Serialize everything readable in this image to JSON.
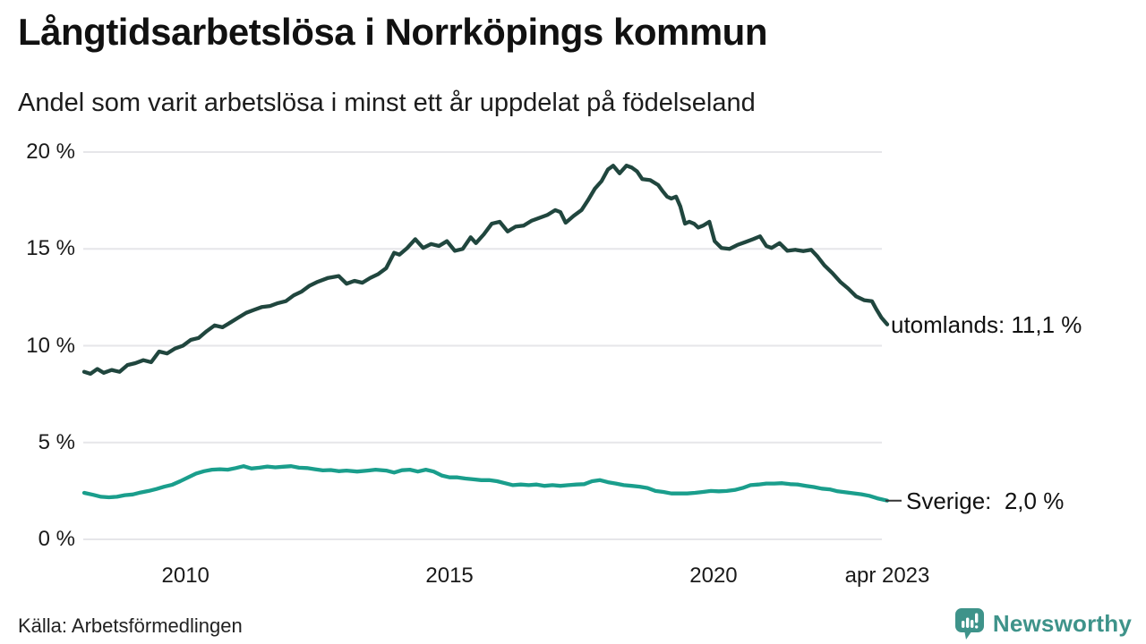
{
  "header": {
    "title": "Långtidsarbetslösa i Norrköpings kommun",
    "subtitle": "Andel som varit arbetslösa i minst ett år uppdelat på födelseland"
  },
  "footer": {
    "source": "Källa: Arbetsförmedlingen",
    "brand": "Newsworthy"
  },
  "colors": {
    "series_utomlands": "#20463e",
    "series_sverige": "#1a9e8c",
    "grid": "#e6e6e9",
    "connector": "#333333",
    "brand_teal": "#3e938a"
  },
  "chart_data": {
    "type": "line",
    "title": "Långtidsarbetslösa i Norrköpings kommun",
    "subtitle": "Andel som varit arbetslösa i minst ett år uppdelat på födelseland",
    "source": "Källa: Arbetsförmedlingen",
    "grid": true,
    "legend_position": "labels-at-line-ends",
    "x_range": [
      2008.08,
      2023.29
    ],
    "y_range": [
      0,
      20
    ],
    "x_ticks": [
      {
        "value": 2010,
        "label": "2010"
      },
      {
        "value": 2015,
        "label": "2015"
      },
      {
        "value": 2020,
        "label": "2020"
      },
      {
        "value": 2023.29,
        "label": "apr 2023"
      }
    ],
    "y_ticks": [
      {
        "value": 0,
        "label": "0 %"
      },
      {
        "value": 5,
        "label": "5 %"
      },
      {
        "value": 10,
        "label": "10 %"
      },
      {
        "value": 15,
        "label": "15 %"
      },
      {
        "value": 20,
        "label": "20 %"
      }
    ],
    "series": [
      {
        "name": "utomlands",
        "end_label": "utomlands: 11,1 %",
        "color": "#20463e",
        "connector": false,
        "points": [
          [
            2008.08,
            8.65
          ],
          [
            2008.2,
            8.55
          ],
          [
            2008.33,
            8.8
          ],
          [
            2008.45,
            8.6
          ],
          [
            2008.6,
            8.75
          ],
          [
            2008.75,
            8.65
          ],
          [
            2008.9,
            9.0
          ],
          [
            2009.05,
            9.1
          ],
          [
            2009.2,
            9.25
          ],
          [
            2009.35,
            9.15
          ],
          [
            2009.5,
            9.7
          ],
          [
            2009.65,
            9.6
          ],
          [
            2009.8,
            9.85
          ],
          [
            2009.95,
            10.0
          ],
          [
            2010.1,
            10.3
          ],
          [
            2010.25,
            10.4
          ],
          [
            2010.4,
            10.75
          ],
          [
            2010.55,
            11.05
          ],
          [
            2010.7,
            10.95
          ],
          [
            2010.85,
            11.2
          ],
          [
            2011.0,
            11.45
          ],
          [
            2011.15,
            11.7
          ],
          [
            2011.3,
            11.85
          ],
          [
            2011.45,
            12.0
          ],
          [
            2011.6,
            12.05
          ],
          [
            2011.75,
            12.2
          ],
          [
            2011.9,
            12.3
          ],
          [
            2012.05,
            12.6
          ],
          [
            2012.2,
            12.8
          ],
          [
            2012.35,
            13.1
          ],
          [
            2012.5,
            13.3
          ],
          [
            2012.7,
            13.5
          ],
          [
            2012.9,
            13.6
          ],
          [
            2013.05,
            13.2
          ],
          [
            2013.2,
            13.35
          ],
          [
            2013.35,
            13.25
          ],
          [
            2013.5,
            13.5
          ],
          [
            2013.65,
            13.7
          ],
          [
            2013.8,
            14.0
          ],
          [
            2013.95,
            14.8
          ],
          [
            2014.05,
            14.7
          ],
          [
            2014.2,
            15.05
          ],
          [
            2014.35,
            15.5
          ],
          [
            2014.5,
            15.05
          ],
          [
            2014.65,
            15.25
          ],
          [
            2014.8,
            15.15
          ],
          [
            2014.95,
            15.4
          ],
          [
            2015.1,
            14.9
          ],
          [
            2015.25,
            15.0
          ],
          [
            2015.4,
            15.6
          ],
          [
            2015.5,
            15.3
          ],
          [
            2015.65,
            15.75
          ],
          [
            2015.8,
            16.3
          ],
          [
            2015.95,
            16.4
          ],
          [
            2016.1,
            15.9
          ],
          [
            2016.25,
            16.15
          ],
          [
            2016.4,
            16.2
          ],
          [
            2016.55,
            16.45
          ],
          [
            2016.7,
            16.6
          ],
          [
            2016.85,
            16.75
          ],
          [
            2017.0,
            17.0
          ],
          [
            2017.1,
            16.9
          ],
          [
            2017.2,
            16.35
          ],
          [
            2017.35,
            16.7
          ],
          [
            2017.5,
            17.0
          ],
          [
            2017.62,
            17.5
          ],
          [
            2017.75,
            18.1
          ],
          [
            2017.88,
            18.5
          ],
          [
            2018.0,
            19.1
          ],
          [
            2018.1,
            19.3
          ],
          [
            2018.22,
            18.9
          ],
          [
            2018.35,
            19.3
          ],
          [
            2018.45,
            19.2
          ],
          [
            2018.55,
            19.0
          ],
          [
            2018.65,
            18.6
          ],
          [
            2018.8,
            18.55
          ],
          [
            2018.95,
            18.3
          ],
          [
            2019.03,
            18.0
          ],
          [
            2019.12,
            17.7
          ],
          [
            2019.2,
            17.6
          ],
          [
            2019.29,
            17.7
          ],
          [
            2019.37,
            17.2
          ],
          [
            2019.46,
            16.3
          ],
          [
            2019.54,
            16.4
          ],
          [
            2019.63,
            16.3
          ],
          [
            2019.71,
            16.1
          ],
          [
            2019.8,
            16.2
          ],
          [
            2019.92,
            16.4
          ],
          [
            2020.02,
            15.4
          ],
          [
            2020.15,
            15.05
          ],
          [
            2020.3,
            15.0
          ],
          [
            2020.45,
            15.2
          ],
          [
            2020.6,
            15.35
          ],
          [
            2020.75,
            15.5
          ],
          [
            2020.88,
            15.65
          ],
          [
            2021.0,
            15.15
          ],
          [
            2021.1,
            15.05
          ],
          [
            2021.25,
            15.3
          ],
          [
            2021.4,
            14.9
          ],
          [
            2021.55,
            14.95
          ],
          [
            2021.7,
            14.88
          ],
          [
            2021.85,
            14.95
          ],
          [
            2021.97,
            14.6
          ],
          [
            2022.1,
            14.15
          ],
          [
            2022.25,
            13.75
          ],
          [
            2022.4,
            13.3
          ],
          [
            2022.55,
            12.95
          ],
          [
            2022.7,
            12.55
          ],
          [
            2022.85,
            12.35
          ],
          [
            2023.0,
            12.3
          ],
          [
            2023.08,
            11.9
          ],
          [
            2023.18,
            11.45
          ],
          [
            2023.29,
            11.1
          ]
        ]
      },
      {
        "name": "Sverige",
        "end_label": "Sverige:  2,0 %",
        "color": "#1a9e8c",
        "connector": true,
        "points": [
          [
            2008.08,
            2.4
          ],
          [
            2008.25,
            2.3
          ],
          [
            2008.4,
            2.2
          ],
          [
            2008.55,
            2.17
          ],
          [
            2008.7,
            2.2
          ],
          [
            2008.85,
            2.28
          ],
          [
            2009.0,
            2.32
          ],
          [
            2009.15,
            2.42
          ],
          [
            2009.3,
            2.5
          ],
          [
            2009.45,
            2.6
          ],
          [
            2009.6,
            2.72
          ],
          [
            2009.75,
            2.82
          ],
          [
            2009.9,
            3.0
          ],
          [
            2010.05,
            3.2
          ],
          [
            2010.2,
            3.4
          ],
          [
            2010.35,
            3.52
          ],
          [
            2010.5,
            3.6
          ],
          [
            2010.65,
            3.62
          ],
          [
            2010.8,
            3.6
          ],
          [
            2010.95,
            3.68
          ],
          [
            2011.1,
            3.78
          ],
          [
            2011.25,
            3.66
          ],
          [
            2011.4,
            3.7
          ],
          [
            2011.55,
            3.76
          ],
          [
            2011.7,
            3.72
          ],
          [
            2011.85,
            3.75
          ],
          [
            2012.0,
            3.78
          ],
          [
            2012.15,
            3.7
          ],
          [
            2012.3,
            3.68
          ],
          [
            2012.45,
            3.62
          ],
          [
            2012.6,
            3.56
          ],
          [
            2012.75,
            3.58
          ],
          [
            2012.9,
            3.52
          ],
          [
            2013.05,
            3.55
          ],
          [
            2013.25,
            3.5
          ],
          [
            2013.45,
            3.55
          ],
          [
            2013.6,
            3.6
          ],
          [
            2013.8,
            3.55
          ],
          [
            2013.95,
            3.45
          ],
          [
            2014.1,
            3.57
          ],
          [
            2014.25,
            3.6
          ],
          [
            2014.4,
            3.5
          ],
          [
            2014.55,
            3.6
          ],
          [
            2014.7,
            3.5
          ],
          [
            2014.85,
            3.3
          ],
          [
            2015.0,
            3.2
          ],
          [
            2015.15,
            3.2
          ],
          [
            2015.3,
            3.14
          ],
          [
            2015.45,
            3.1
          ],
          [
            2015.6,
            3.06
          ],
          [
            2015.75,
            3.06
          ],
          [
            2015.9,
            3.0
          ],
          [
            2016.05,
            2.9
          ],
          [
            2016.2,
            2.8
          ],
          [
            2016.35,
            2.83
          ],
          [
            2016.5,
            2.8
          ],
          [
            2016.65,
            2.83
          ],
          [
            2016.8,
            2.76
          ],
          [
            2016.95,
            2.8
          ],
          [
            2017.1,
            2.76
          ],
          [
            2017.25,
            2.8
          ],
          [
            2017.4,
            2.83
          ],
          [
            2017.55,
            2.85
          ],
          [
            2017.7,
            3.0
          ],
          [
            2017.85,
            3.06
          ],
          [
            2018.0,
            2.95
          ],
          [
            2018.15,
            2.88
          ],
          [
            2018.3,
            2.8
          ],
          [
            2018.45,
            2.76
          ],
          [
            2018.6,
            2.72
          ],
          [
            2018.75,
            2.65
          ],
          [
            2018.9,
            2.5
          ],
          [
            2019.05,
            2.45
          ],
          [
            2019.2,
            2.37
          ],
          [
            2019.35,
            2.37
          ],
          [
            2019.5,
            2.37
          ],
          [
            2019.65,
            2.4
          ],
          [
            2019.8,
            2.45
          ],
          [
            2019.95,
            2.5
          ],
          [
            2020.1,
            2.48
          ],
          [
            2020.25,
            2.5
          ],
          [
            2020.4,
            2.55
          ],
          [
            2020.55,
            2.65
          ],
          [
            2020.7,
            2.8
          ],
          [
            2020.85,
            2.83
          ],
          [
            2021.0,
            2.88
          ],
          [
            2021.15,
            2.88
          ],
          [
            2021.3,
            2.9
          ],
          [
            2021.45,
            2.85
          ],
          [
            2021.6,
            2.83
          ],
          [
            2021.75,
            2.76
          ],
          [
            2021.9,
            2.7
          ],
          [
            2022.05,
            2.62
          ],
          [
            2022.2,
            2.58
          ],
          [
            2022.35,
            2.48
          ],
          [
            2022.5,
            2.43
          ],
          [
            2022.65,
            2.38
          ],
          [
            2022.8,
            2.33
          ],
          [
            2022.95,
            2.25
          ],
          [
            2023.1,
            2.12
          ],
          [
            2023.29,
            2.0
          ]
        ]
      }
    ]
  }
}
